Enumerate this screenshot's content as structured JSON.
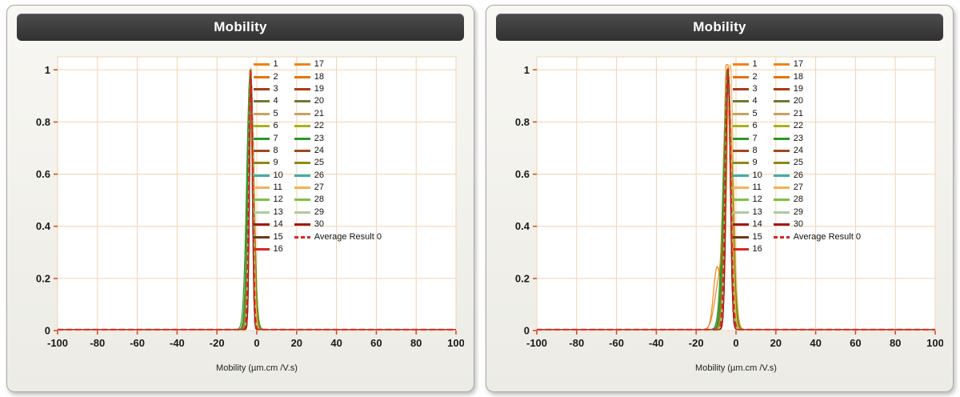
{
  "panels": [
    {
      "title": "Mobility"
    },
    {
      "title": "Mobility"
    }
  ],
  "chart_data": [
    {
      "type": "line",
      "title": "Mobility",
      "xlabel": "Mobility (µm.cm /V.s)",
      "ylabel": "",
      "xlim": [
        -100,
        100
      ],
      "ylim": [
        0,
        1.05
      ],
      "xticks": [
        -100,
        -80,
        -60,
        -40,
        -20,
        0,
        20,
        40,
        60,
        80,
        100
      ],
      "yticks": [
        0,
        0.2,
        0.4,
        0.6,
        0.8,
        1
      ],
      "grid": true,
      "legend_position": "top-center",
      "colors": {
        "grid": "#f2d3b0",
        "tick": "#d2491e",
        "axis_text": "#1a1a1a",
        "plot_bg": "#ffffff"
      },
      "series": [
        {
          "name": "1",
          "color": "#F08418",
          "peaks": [
            [
              -3.2,
              1.6,
              1
            ]
          ]
        },
        {
          "name": "2",
          "color": "#E8720C",
          "peaks": [
            [
              -3.0,
              1.3,
              1
            ]
          ]
        },
        {
          "name": "3",
          "color": "#A63C14",
          "peaks": [
            [
              -2.9,
              1.1,
              1
            ]
          ]
        },
        {
          "name": "4",
          "color": "#6E7A32",
          "peaks": [
            [
              -3.1,
              1.9,
              1
            ]
          ]
        },
        {
          "name": "5",
          "color": "#C9A063",
          "peaks": [
            [
              -3.0,
              1.2,
              1
            ]
          ]
        },
        {
          "name": "6",
          "color": "#A9B11F",
          "peaks": [
            [
              -2.8,
              1.5,
              0.95
            ]
          ]
        },
        {
          "name": "7",
          "color": "#2E9628",
          "peaks": [
            [
              -3.3,
              2.4,
              1
            ]
          ]
        },
        {
          "name": "8",
          "color": "#9C4A20",
          "peaks": [
            [
              -3.0,
              1.1,
              1
            ]
          ]
        },
        {
          "name": "9",
          "color": "#8A8A1A",
          "peaks": [
            [
              -2.7,
              2.0,
              0.9
            ]
          ]
        },
        {
          "name": "10",
          "color": "#3BAFAF",
          "peaks": [
            [
              -3.1,
              1.2,
              1
            ]
          ]
        },
        {
          "name": "11",
          "color": "#F7B055",
          "peaks": [
            [
              -2.6,
              1.7,
              0.85
            ]
          ]
        },
        {
          "name": "12",
          "color": "#7DC242",
          "peaks": [
            [
              -3.2,
              1.4,
              1
            ]
          ]
        },
        {
          "name": "13",
          "color": "#AFCBA0",
          "peaks": [
            [
              -3.0,
              1.2,
              0.95
            ]
          ]
        },
        {
          "name": "14",
          "color": "#A01818",
          "peaks": [
            [
              -2.9,
              1.0,
              1
            ]
          ]
        },
        {
          "name": "15",
          "color": "#6B3A16",
          "peaks": [
            [
              -3.1,
              1.1,
              1
            ]
          ]
        },
        {
          "name": "16",
          "color": "#D42A1E",
          "peaks": [
            [
              -3.0,
              1.2,
              1
            ]
          ]
        },
        {
          "name": "17",
          "color": "#F08418",
          "peaks": [
            [
              -3.4,
              1.5,
              1
            ]
          ]
        },
        {
          "name": "18",
          "color": "#E8720C",
          "peaks": [
            [
              -3.0,
              1.2,
              0.9
            ]
          ]
        },
        {
          "name": "19",
          "color": "#A63C14",
          "peaks": [
            [
              -2.8,
              1.1,
              1
            ]
          ]
        },
        {
          "name": "20",
          "color": "#6E7A32",
          "peaks": [
            [
              -3.2,
              1.8,
              0.95
            ]
          ]
        },
        {
          "name": "21",
          "color": "#C9A063",
          "peaks": [
            [
              -3.0,
              1.3,
              1
            ]
          ]
        },
        {
          "name": "22",
          "color": "#A9B11F",
          "peaks": [
            [
              -2.9,
              1.6,
              0.9
            ]
          ]
        },
        {
          "name": "23",
          "color": "#2E9628",
          "peaks": [
            [
              -3.1,
              2.1,
              1
            ]
          ]
        },
        {
          "name": "24",
          "color": "#9C4A20",
          "peaks": [
            [
              -3.0,
              1.1,
              0.95
            ]
          ]
        },
        {
          "name": "25",
          "color": "#8A8A1A",
          "peaks": [
            [
              -2.8,
              1.9,
              0.9
            ]
          ]
        },
        {
          "name": "26",
          "color": "#3BAFAF",
          "peaks": [
            [
              -3.2,
              1.2,
              1
            ]
          ]
        },
        {
          "name": "27",
          "color": "#F7B055",
          "peaks": [
            [
              -2.7,
              1.5,
              0.9
            ]
          ]
        },
        {
          "name": "28",
          "color": "#7DC242",
          "peaks": [
            [
              -3.1,
              1.4,
              1
            ]
          ]
        },
        {
          "name": "29",
          "color": "#AFCBA0",
          "peaks": [
            [
              -3.0,
              1.3,
              0.9
            ]
          ]
        },
        {
          "name": "30",
          "color": "#A01818",
          "peaks": [
            [
              -2.9,
              1.0,
              1
            ]
          ]
        },
        {
          "name": "Average Result 0",
          "color": "#D8261C",
          "dash": true,
          "peaks": [
            [
              -3.0,
              1.3,
              1
            ]
          ]
        }
      ]
    },
    {
      "type": "line",
      "title": "Mobility",
      "xlabel": "Mobility (µm.cm /V.s)",
      "ylabel": "",
      "xlim": [
        -100,
        100
      ],
      "ylim": [
        0,
        1.05
      ],
      "xticks": [
        -100,
        -80,
        -60,
        -40,
        -20,
        0,
        20,
        40,
        60,
        80,
        100
      ],
      "yticks": [
        0,
        0.2,
        0.4,
        0.6,
        0.8,
        1
      ],
      "grid": true,
      "legend_position": "top-center",
      "colors": {
        "grid": "#f2d3b0",
        "tick": "#d2491e",
        "axis_text": "#1a1a1a",
        "plot_bg": "#ffffff"
      },
      "series": [
        {
          "name": "1",
          "color": "#F08418",
          "peaks": [
            [
              -4.0,
              2.2,
              1
            ],
            [
              -9.5,
              2.5,
              0.24
            ]
          ]
        },
        {
          "name": "2",
          "color": "#E8720C",
          "peaks": [
            [
              -4.2,
              2.0,
              1
            ]
          ]
        },
        {
          "name": "3",
          "color": "#A63C14",
          "peaks": [
            [
              -3.8,
              1.6,
              1
            ]
          ]
        },
        {
          "name": "4",
          "color": "#6E7A32",
          "peaks": [
            [
              -4.1,
              2.6,
              1
            ]
          ]
        },
        {
          "name": "5",
          "color": "#C9A063",
          "peaks": [
            [
              -4.0,
              1.8,
              1
            ]
          ]
        },
        {
          "name": "6",
          "color": "#A9B11F",
          "peaks": [
            [
              -3.7,
              2.2,
              0.95
            ]
          ]
        },
        {
          "name": "7",
          "color": "#2E9628",
          "peaks": [
            [
              -4.3,
              3.0,
              1
            ]
          ]
        },
        {
          "name": "8",
          "color": "#9C4A20",
          "peaks": [
            [
              -4.0,
              1.6,
              1
            ]
          ]
        },
        {
          "name": "9",
          "color": "#8A8A1A",
          "peaks": [
            [
              -3.6,
              2.8,
              0.9
            ]
          ]
        },
        {
          "name": "10",
          "color": "#3BAFAF",
          "peaks": [
            [
              -4.1,
              1.8,
              1
            ]
          ]
        },
        {
          "name": "11",
          "color": "#F7B055",
          "peaks": [
            [
              -3.2,
              2.0,
              0.9
            ],
            [
              -1.5,
              2.2,
              0.25
            ]
          ]
        },
        {
          "name": "12",
          "color": "#7DC242",
          "peaks": [
            [
              -4.2,
              2.0,
              1
            ]
          ]
        },
        {
          "name": "13",
          "color": "#AFCBA0",
          "peaks": [
            [
              -4.0,
              1.8,
              0.95
            ]
          ]
        },
        {
          "name": "14",
          "color": "#A01818",
          "peaks": [
            [
              -3.9,
              1.5,
              1
            ]
          ]
        },
        {
          "name": "15",
          "color": "#6B3A16",
          "peaks": [
            [
              -4.1,
              1.6,
              1
            ]
          ]
        },
        {
          "name": "16",
          "color": "#D42A1E",
          "peaks": [
            [
              -4.0,
              1.8,
              1
            ]
          ]
        },
        {
          "name": "17",
          "color": "#F08418",
          "peaks": [
            [
              -4.4,
              2.1,
              1
            ],
            [
              -8.0,
              3.5,
              0.2
            ]
          ]
        },
        {
          "name": "18",
          "color": "#E8720C",
          "peaks": [
            [
              -4.0,
              1.8,
              0.9
            ]
          ]
        },
        {
          "name": "19",
          "color": "#A63C14",
          "peaks": [
            [
              -3.8,
              1.6,
              1
            ]
          ]
        },
        {
          "name": "20",
          "color": "#6E7A32",
          "peaks": [
            [
              -4.2,
              2.4,
              0.95
            ]
          ]
        },
        {
          "name": "21",
          "color": "#C9A063",
          "peaks": [
            [
              -4.0,
              1.9,
              1
            ]
          ]
        },
        {
          "name": "22",
          "color": "#A9B11F",
          "peaks": [
            [
              -3.9,
              2.2,
              0.9
            ]
          ]
        },
        {
          "name": "23",
          "color": "#2E9628",
          "peaks": [
            [
              -4.1,
              2.8,
              1
            ]
          ]
        },
        {
          "name": "24",
          "color": "#9C4A20",
          "peaks": [
            [
              -4.0,
              1.6,
              0.95
            ]
          ]
        },
        {
          "name": "25",
          "color": "#8A8A1A",
          "peaks": [
            [
              -3.8,
              2.5,
              0.9
            ]
          ]
        },
        {
          "name": "26",
          "color": "#3BAFAF",
          "peaks": [
            [
              -4.2,
              1.8,
              1
            ]
          ]
        },
        {
          "name": "27",
          "color": "#F7B055",
          "peaks": [
            [
              -3.5,
              2.1,
              0.9
            ]
          ]
        },
        {
          "name": "28",
          "color": "#7DC242",
          "peaks": [
            [
              -4.1,
              2.0,
              1
            ]
          ]
        },
        {
          "name": "29",
          "color": "#AFCBA0",
          "peaks": [
            [
              -4.0,
              1.9,
              0.9
            ]
          ]
        },
        {
          "name": "30",
          "color": "#A01818",
          "peaks": [
            [
              -3.9,
              1.5,
              1
            ]
          ]
        },
        {
          "name": "Average Result 0",
          "color": "#D8261C",
          "dash": true,
          "peaks": [
            [
              -4.0,
              1.9,
              1
            ]
          ]
        }
      ]
    }
  ]
}
